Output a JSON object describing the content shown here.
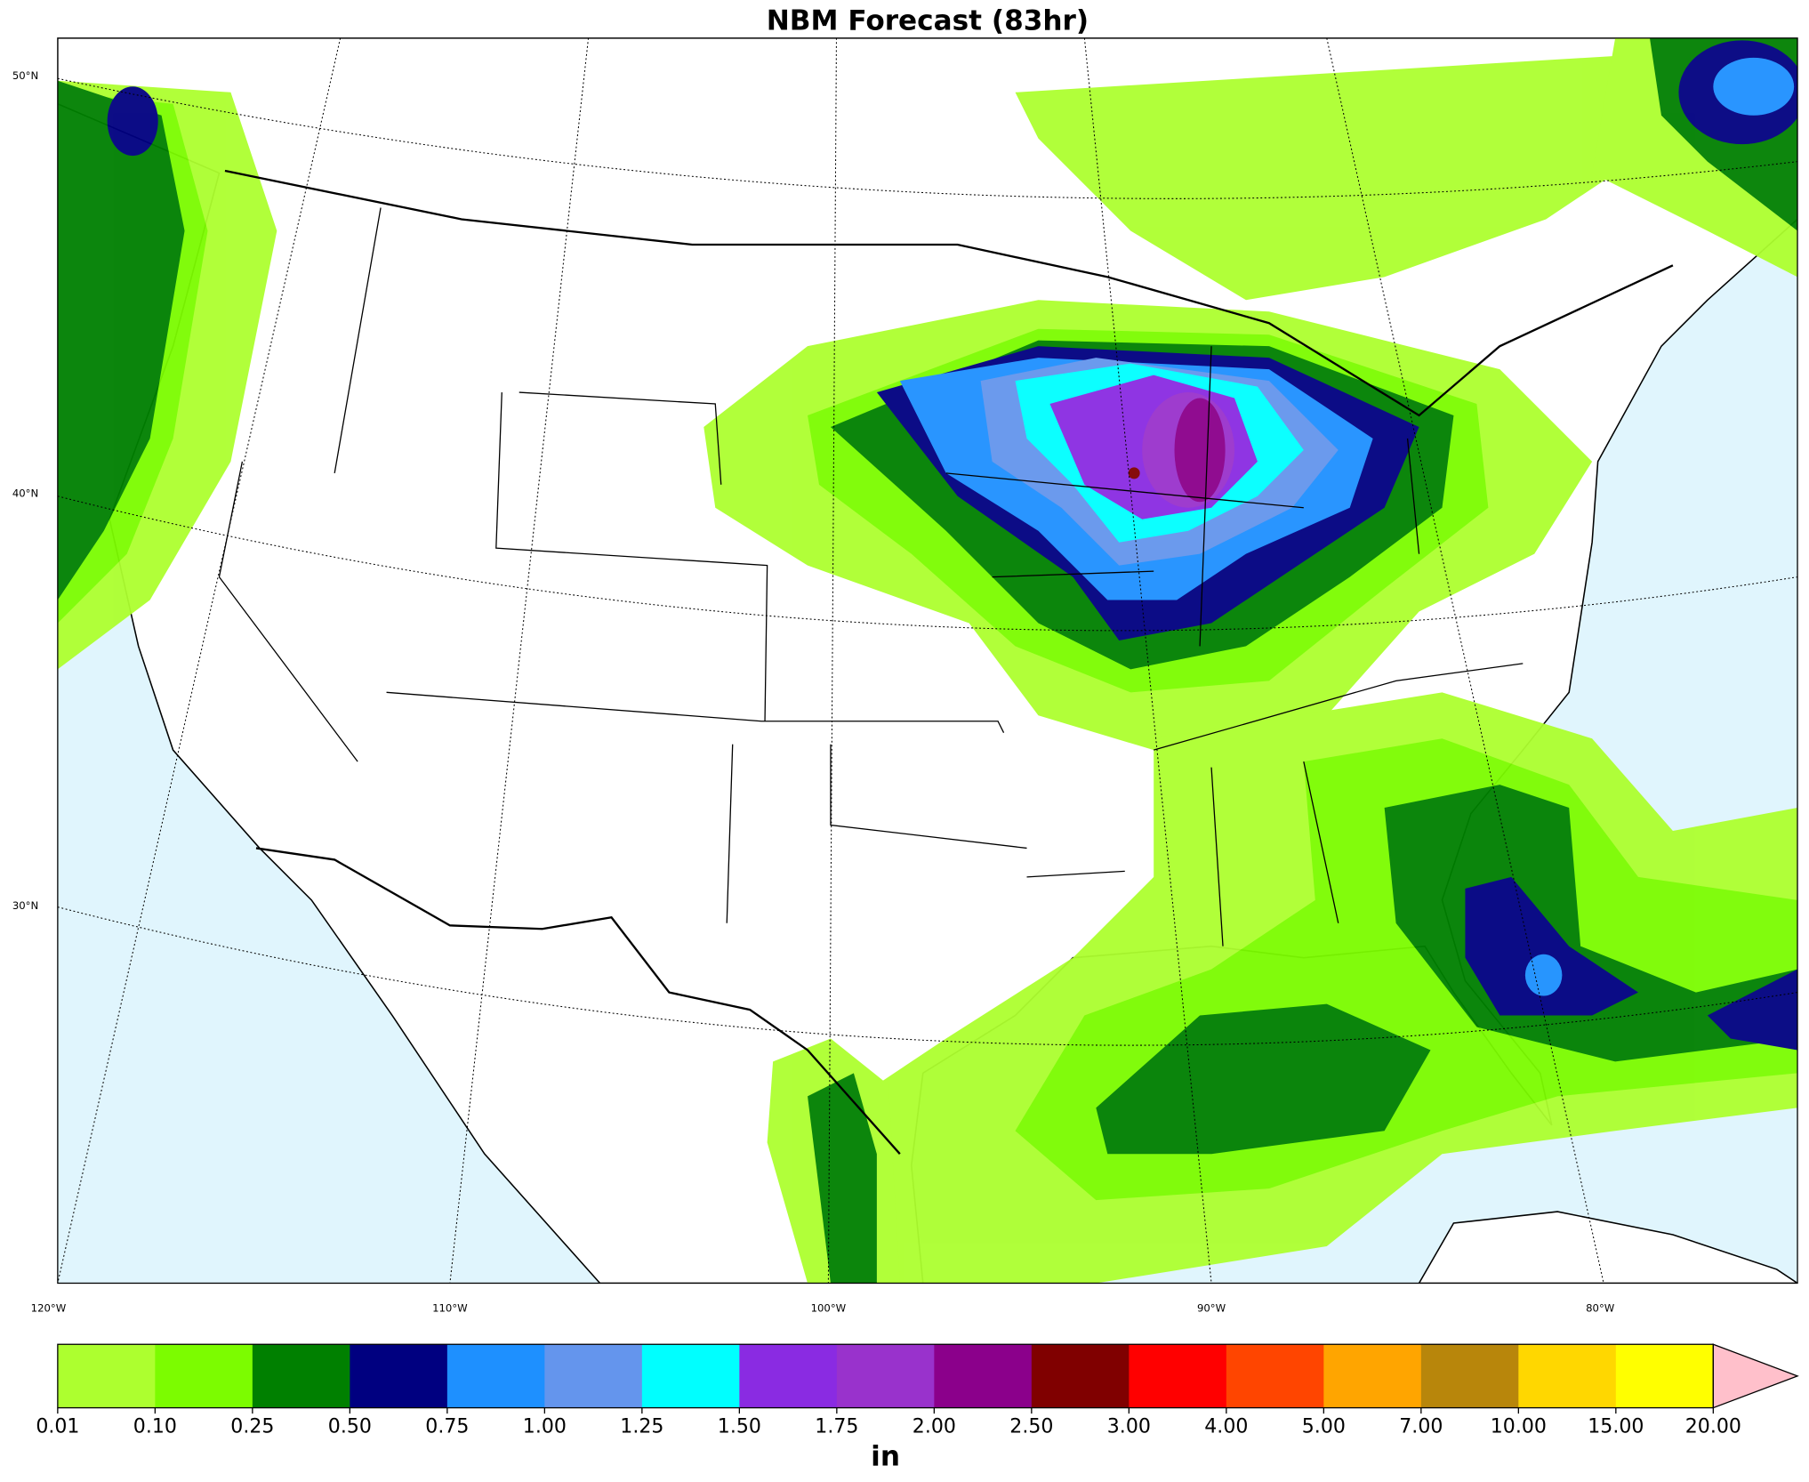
{
  "title": "NBM Forecast (83hr)",
  "lat_labels": [
    "50°N",
    "40°N",
    "30°N"
  ],
  "lon_labels": [
    "120°W",
    "110°W",
    "100°W",
    "90°W",
    "80°W"
  ],
  "colorbar": {
    "unit": "in",
    "levels": [
      "0.01",
      "0.10",
      "0.25",
      "0.50",
      "0.75",
      "1.00",
      "1.25",
      "1.50",
      "1.75",
      "2.00",
      "2.50",
      "3.00",
      "4.00",
      "5.00",
      "7.00",
      "10.00",
      "15.00",
      "20.00"
    ],
    "colors": [
      "#adff2f",
      "#7cfc00",
      "#008000",
      "#000080",
      "#1e90ff",
      "#6495ed",
      "#00ffff",
      "#8a2be2",
      "#9932cc",
      "#8b008b",
      "#800000",
      "#ff0000",
      "#ff4500",
      "#ffa500",
      "#b8860b",
      "#ffd700",
      "#ffff00"
    ],
    "extend_color": "#ffc0cb"
  }
}
